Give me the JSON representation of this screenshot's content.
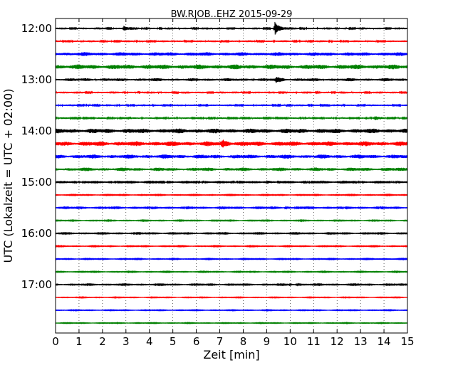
{
  "chart_data": {
    "type": "line",
    "title": "BW.RJOB..EHZ 2015-09-29",
    "xlabel": "Zeit  [min]",
    "ylabel": "UTC (Lokalzeit = UTC + 02:00)",
    "xlim": [
      0,
      15
    ],
    "x_ticks": [
      "0",
      "1",
      "2",
      "3",
      "4",
      "5",
      "6",
      "7",
      "8",
      "9",
      "10",
      "11",
      "12",
      "13",
      "14",
      "15"
    ],
    "y_ticks": [
      {
        "label": "12:00",
        "row": 0
      },
      {
        "label": "13:00",
        "row": 4
      },
      {
        "label": "14:00",
        "row": 8
      },
      {
        "label": "15:00",
        "row": 12
      },
      {
        "label": "16:00",
        "row": 16
      },
      {
        "label": "17:00",
        "row": 20
      }
    ],
    "grid": "vertical dotted",
    "trace_colors": [
      "#000000",
      "#ff0000",
      "#0000ff",
      "#008000"
    ],
    "rows": [
      {
        "time": "12:00",
        "color": "#000000",
        "amplitude": 0.18,
        "events": [
          {
            "min": 2.9,
            "amp": 0.35
          },
          {
            "min": 9.35,
            "amp": 1.0
          }
        ]
      },
      {
        "time": "12:15",
        "color": "#ff0000",
        "amplitude": 0.16,
        "events": []
      },
      {
        "time": "12:30",
        "color": "#0000ff",
        "amplitude": 0.32,
        "events": []
      },
      {
        "time": "12:45",
        "color": "#008000",
        "amplitude": 0.4,
        "events": []
      },
      {
        "time": "13:00",
        "color": "#000000",
        "amplitude": 0.26,
        "events": [
          {
            "min": 9.4,
            "amp": 0.35
          }
        ]
      },
      {
        "time": "13:15",
        "color": "#ff0000",
        "amplitude": 0.18,
        "events": []
      },
      {
        "time": "13:30",
        "color": "#0000ff",
        "amplitude": 0.16,
        "events": []
      },
      {
        "time": "13:45",
        "color": "#008000",
        "amplitude": 0.14,
        "events": [
          {
            "min": 13.6,
            "amp": 0.3
          }
        ]
      },
      {
        "time": "14:00",
        "color": "#000000",
        "amplitude": 0.4,
        "events": []
      },
      {
        "time": "14:15",
        "color": "#ff0000",
        "amplitude": 0.4,
        "events": [
          {
            "min": 7.1,
            "amp": 0.55
          }
        ]
      },
      {
        "time": "14:30",
        "color": "#0000ff",
        "amplitude": 0.34,
        "events": []
      },
      {
        "time": "14:45",
        "color": "#008000",
        "amplitude": 0.3,
        "events": []
      },
      {
        "time": "15:00",
        "color": "#000000",
        "amplitude": 0.1,
        "events": [
          {
            "min": 9.0,
            "amp": 0.25
          }
        ]
      },
      {
        "time": "15:15",
        "color": "#ff0000",
        "amplitude": 0.07,
        "events": []
      },
      {
        "time": "15:30",
        "color": "#0000ff",
        "amplitude": 0.09,
        "events": [
          {
            "min": 9.8,
            "amp": 0.3
          }
        ]
      },
      {
        "time": "15:45",
        "color": "#008000",
        "amplitude": 0.07,
        "events": []
      },
      {
        "time": "16:00",
        "color": "#000000",
        "amplitude": 0.08,
        "events": []
      },
      {
        "time": "16:15",
        "color": "#ff0000",
        "amplitude": 0.07,
        "events": []
      },
      {
        "time": "16:30",
        "color": "#0000ff",
        "amplitude": 0.07,
        "events": []
      },
      {
        "time": "16:45",
        "color": "#008000",
        "amplitude": 0.07,
        "events": []
      },
      {
        "time": "17:00",
        "color": "#000000",
        "amplitude": 0.08,
        "events": [
          {
            "min": 10.0,
            "amp": 0.2
          }
        ]
      },
      {
        "time": "17:15",
        "color": "#ff0000",
        "amplitude": 0.06,
        "events": []
      },
      {
        "time": "17:30",
        "color": "#0000ff",
        "amplitude": 0.06,
        "events": []
      },
      {
        "time": "17:45",
        "color": "#008000",
        "amplitude": 0.06,
        "events": []
      }
    ]
  }
}
